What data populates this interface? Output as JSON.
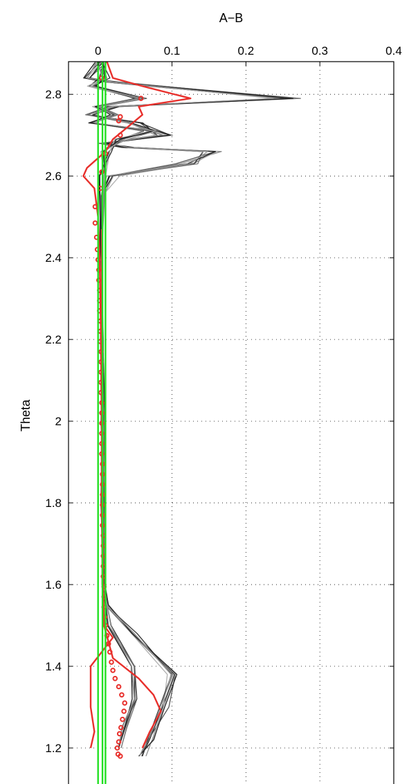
{
  "chart_data": {
    "type": "line",
    "title": "",
    "xlabel": "A−B",
    "ylabel": "Theta",
    "xlim": [
      -0.04,
      0.4
    ],
    "ylim": [
      1.1,
      2.88
    ],
    "x_axis_position": "top",
    "xticks": [
      0,
      0.1,
      0.2,
      0.3,
      0.4
    ],
    "xtick_labels": [
      "0",
      "0.1",
      "0.2",
      "0.3",
      "0.4"
    ],
    "yticks": [
      1.2,
      1.4,
      1.6,
      1.8,
      2.0,
      2.2,
      2.4,
      2.6,
      2.8
    ],
    "ytick_labels": [
      "1.2",
      "1.4",
      "1.6",
      "1.8",
      "2",
      "2.2",
      "2.4",
      "2.6",
      "2.8"
    ],
    "grid": true,
    "colors": {
      "ensemble_black": "#1a1a1a",
      "ensemble_gray": "#8c8c8c",
      "red": "#e8302c",
      "green": "#22e022"
    },
    "series": [
      {
        "style": "gray-lines",
        "points": [
          [
            0.005,
            2.88
          ],
          [
            -0.015,
            2.84
          ],
          [
            0.02,
            2.83
          ],
          [
            0.255,
            2.79
          ],
          [
            0.02,
            2.77
          ],
          [
            -0.01,
            2.75
          ],
          [
            0.05,
            2.73
          ],
          [
            0.09,
            2.7
          ],
          [
            0.01,
            2.68
          ],
          [
            0.04,
            2.67
          ],
          [
            0.15,
            2.66
          ],
          [
            0.12,
            2.63
          ],
          [
            0.02,
            2.6
          ],
          [
            0.005,
            2.55
          ],
          [
            0.004,
            2.4
          ],
          [
            0.006,
            2.2
          ],
          [
            0.007,
            2.0
          ],
          [
            0.008,
            1.8
          ],
          [
            0.008,
            1.6
          ],
          [
            0.012,
            1.55
          ],
          [
            0.05,
            1.48
          ],
          [
            0.1,
            1.38
          ],
          [
            0.09,
            1.3
          ],
          [
            0.07,
            1.22
          ],
          [
            0.06,
            1.18
          ]
        ]
      },
      {
        "style": "gray-lines",
        "points": [
          [
            0.0,
            2.88
          ],
          [
            0.01,
            2.84
          ],
          [
            -0.01,
            2.82
          ],
          [
            0.06,
            2.79
          ],
          [
            0.0,
            2.77
          ],
          [
            0.02,
            2.75
          ],
          [
            -0.01,
            2.73
          ],
          [
            0.07,
            2.71
          ],
          [
            0.03,
            2.69
          ],
          [
            0.01,
            2.66
          ],
          [
            0.005,
            2.6
          ],
          [
            0.003,
            2.4
          ],
          [
            0.005,
            2.2
          ],
          [
            0.006,
            2.0
          ],
          [
            0.006,
            1.8
          ],
          [
            0.007,
            1.6
          ],
          [
            0.015,
            1.5
          ],
          [
            0.045,
            1.4
          ],
          [
            0.05,
            1.32
          ],
          [
            0.035,
            1.25
          ],
          [
            0.03,
            1.2
          ]
        ]
      },
      {
        "style": "red-line",
        "points": [
          [
            0.012,
            2.88
          ],
          [
            0.02,
            2.84
          ],
          [
            0.06,
            2.82
          ],
          [
            0.125,
            2.79
          ],
          [
            0.055,
            2.77
          ],
          [
            0.06,
            2.75
          ],
          [
            0.04,
            2.72
          ],
          [
            0.02,
            2.69
          ],
          [
            0.01,
            2.66
          ],
          [
            -0.015,
            2.62
          ],
          [
            -0.02,
            2.6
          ],
          [
            -0.005,
            2.57
          ],
          [
            0.0,
            2.5
          ],
          [
            0.002,
            2.4
          ],
          [
            0.004,
            2.2
          ],
          [
            0.005,
            2.0
          ],
          [
            0.005,
            1.8
          ],
          [
            0.006,
            1.6
          ],
          [
            0.008,
            1.5
          ],
          [
            0.02,
            1.47
          ],
          [
            -0.01,
            1.4
          ],
          [
            -0.01,
            1.3
          ],
          [
            -0.005,
            1.24
          ],
          [
            -0.01,
            1.2
          ]
        ]
      },
      {
        "style": "red-line",
        "points": [
          [
            0.005,
            2.47
          ],
          [
            0.005,
            2.2
          ],
          [
            0.006,
            2.0
          ],
          [
            0.006,
            1.8
          ],
          [
            0.007,
            1.6
          ],
          [
            0.008,
            1.5
          ],
          [
            0.02,
            1.42
          ],
          [
            0.055,
            1.37
          ],
          [
            0.075,
            1.33
          ],
          [
            0.085,
            1.29
          ],
          [
            0.07,
            1.24
          ],
          [
            0.06,
            1.2
          ]
        ]
      },
      {
        "style": "red-circles",
        "points": [
          [
            0.005,
            2.84
          ],
          [
            0.058,
            2.79
          ],
          [
            0.03,
            2.745
          ],
          [
            0.028,
            2.735
          ],
          [
            0.03,
            2.7
          ],
          [
            0.01,
            2.655
          ],
          [
            0.005,
            2.61
          ],
          [
            0.003,
            2.57
          ],
          [
            -0.004,
            2.525
          ],
          [
            -0.004,
            2.485
          ],
          [
            -0.002,
            2.45
          ],
          [
            -0.001,
            2.42
          ],
          [
            0.0,
            2.395
          ],
          [
            0.001,
            2.37
          ],
          [
            0.001,
            2.345
          ],
          [
            0.002,
            2.32
          ],
          [
            0.002,
            2.295
          ],
          [
            0.002,
            2.27
          ],
          [
            0.003,
            2.245
          ],
          [
            0.003,
            2.22
          ],
          [
            0.003,
            2.195
          ],
          [
            0.004,
            2.17
          ],
          [
            0.004,
            2.145
          ],
          [
            0.004,
            2.12
          ],
          [
            0.004,
            2.095
          ],
          [
            0.004,
            2.07
          ],
          [
            0.005,
            2.045
          ],
          [
            0.005,
            2.02
          ],
          [
            0.005,
            1.995
          ],
          [
            0.005,
            1.97
          ],
          [
            0.005,
            1.945
          ],
          [
            0.005,
            1.92
          ],
          [
            0.006,
            1.895
          ],
          [
            0.006,
            1.87
          ],
          [
            0.006,
            1.845
          ],
          [
            0.006,
            1.82
          ],
          [
            0.006,
            1.795
          ],
          [
            0.006,
            1.77
          ],
          [
            0.006,
            1.745
          ],
          [
            0.007,
            1.72
          ],
          [
            0.007,
            1.695
          ],
          [
            0.007,
            1.67
          ],
          [
            0.007,
            1.645
          ],
          [
            0.007,
            1.62
          ],
          [
            0.008,
            1.595
          ],
          [
            0.008,
            1.57
          ],
          [
            0.008,
            1.545
          ],
          [
            0.009,
            1.52
          ],
          [
            0.01,
            1.5
          ],
          [
            0.012,
            1.475
          ],
          [
            0.014,
            1.455
          ],
          [
            0.016,
            1.435
          ],
          [
            0.018,
            1.41
          ],
          [
            0.02,
            1.39
          ],
          [
            0.023,
            1.37
          ],
          [
            0.028,
            1.35
          ],
          [
            0.032,
            1.33
          ],
          [
            0.036,
            1.31
          ],
          [
            0.035,
            1.29
          ],
          [
            0.033,
            1.27
          ],
          [
            0.031,
            1.25
          ],
          [
            0.029,
            1.235
          ],
          [
            0.028,
            1.215
          ],
          [
            0.026,
            1.2
          ],
          [
            0.027,
            1.185
          ],
          [
            0.03,
            1.18
          ]
        ]
      },
      {
        "style": "green-lines",
        "points": [
          [
            0.0,
            2.88
          ],
          [
            0.0,
            1.1
          ]
        ]
      },
      {
        "style": "green-lines",
        "points": [
          [
            0.006,
            2.88
          ],
          [
            0.006,
            1.1
          ]
        ]
      },
      {
        "style": "green-lines",
        "points": [
          [
            0.01,
            2.88
          ],
          [
            0.01,
            1.1
          ]
        ]
      }
    ]
  }
}
